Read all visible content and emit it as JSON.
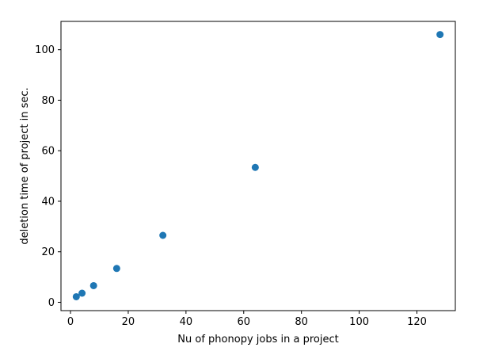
{
  "chart_data": {
    "type": "scatter",
    "title": "",
    "xlabel": "Nu of phonopy jobs in a project",
    "ylabel": "deletion time of project in sec.",
    "xlim": [
      -3.3,
      133.3
    ],
    "ylim": [
      -3.3,
      111.2
    ],
    "x_ticks": [
      0,
      20,
      40,
      60,
      80,
      100,
      120
    ],
    "y_ticks": [
      0,
      20,
      40,
      60,
      80,
      100
    ],
    "grid": false,
    "marker_color": "#1f77b4",
    "points": [
      {
        "x": 2,
        "y": 2.2
      },
      {
        "x": 4,
        "y": 3.6
      },
      {
        "x": 8,
        "y": 6.6
      },
      {
        "x": 16,
        "y": 13.4
      },
      {
        "x": 32,
        "y": 26.5
      },
      {
        "x": 64,
        "y": 53.4
      },
      {
        "x": 128,
        "y": 106
      }
    ]
  }
}
